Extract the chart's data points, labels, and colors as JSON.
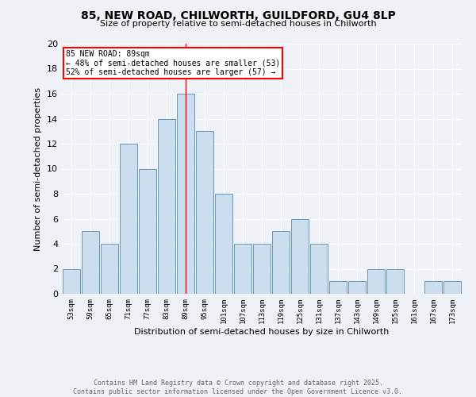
{
  "title1": "85, NEW ROAD, CHILWORTH, GUILDFORD, GU4 8LP",
  "title2": "Size of property relative to semi-detached houses in Chilworth",
  "xlabel": "Distribution of semi-detached houses by size in Chilworth",
  "ylabel": "Number of semi-detached properties",
  "categories": [
    "53sqm",
    "59sqm",
    "65sqm",
    "71sqm",
    "77sqm",
    "83sqm",
    "89sqm",
    "95sqm",
    "101sqm",
    "107sqm",
    "113sqm",
    "119sqm",
    "125sqm",
    "131sqm",
    "137sqm",
    "143sqm",
    "149sqm",
    "155sqm",
    "161sqm",
    "167sqm",
    "173sqm"
  ],
  "values": [
    2,
    5,
    4,
    12,
    10,
    14,
    16,
    13,
    8,
    4,
    4,
    5,
    6,
    4,
    1,
    1,
    2,
    2,
    0,
    1,
    1
  ],
  "bar_color": "#ccdded",
  "bar_edge_color": "#6699bb",
  "annotation_title": "85 NEW ROAD: 89sqm",
  "annotation_line1": "← 48% of semi-detached houses are smaller (53)",
  "annotation_line2": "52% of semi-detached houses are larger (57) →",
  "footer1": "Contains HM Land Registry data © Crown copyright and database right 2025.",
  "footer2": "Contains public sector information licensed under the Open Government Licence v3.0.",
  "ylim": [
    0,
    20
  ],
  "yticks": [
    0,
    2,
    4,
    6,
    8,
    10,
    12,
    14,
    16,
    18,
    20
  ],
  "bg_color": "#eef2f7",
  "plot_bg_color": "#eef2f7",
  "highlight_line_index": 6
}
